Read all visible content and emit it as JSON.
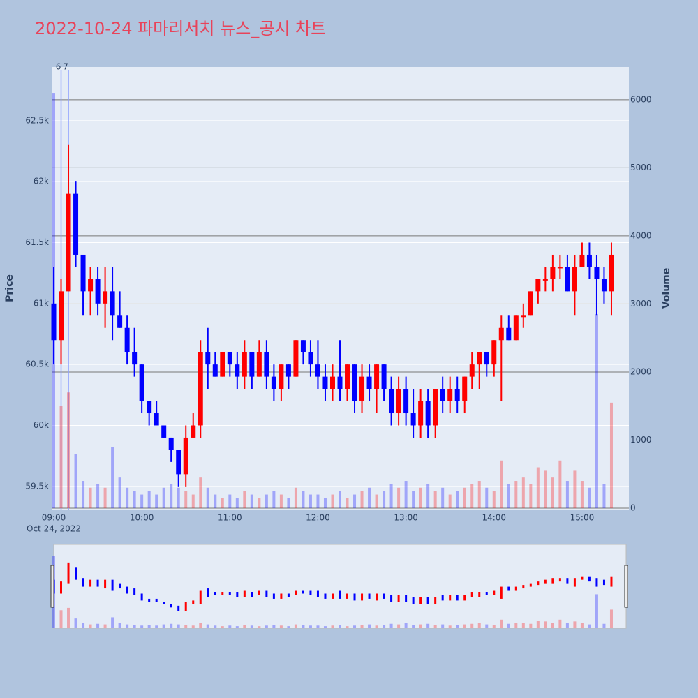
{
  "chart_data": {
    "type": "candlestick",
    "title": "2022-10-24 파마리서치 뉴스_공시 차트",
    "ylabel": "Price",
    "y2label": "Volume",
    "date_label": "Oct 24, 2022",
    "up_color": "#ff0000",
    "down_color": "#0000ff",
    "grid": true,
    "x": [
      "09:00",
      "09:05",
      "09:10",
      "09:15",
      "09:20",
      "09:25",
      "09:30",
      "09:35",
      "09:40",
      "09:45",
      "09:50",
      "09:55",
      "10:00",
      "10:05",
      "10:10",
      "10:15",
      "10:20",
      "10:25",
      "10:30",
      "10:35",
      "10:40",
      "10:45",
      "10:50",
      "10:55",
      "11:00",
      "11:05",
      "11:10",
      "11:15",
      "11:20",
      "11:25",
      "11:30",
      "11:35",
      "11:40",
      "11:45",
      "11:50",
      "11:55",
      "12:00",
      "12:05",
      "12:10",
      "12:15",
      "12:20",
      "12:25",
      "12:30",
      "12:35",
      "12:40",
      "12:45",
      "12:50",
      "12:55",
      "13:00",
      "13:05",
      "13:10",
      "13:15",
      "13:20",
      "13:25",
      "13:30",
      "13:35",
      "13:40",
      "13:45",
      "13:50",
      "13:55",
      "14:00",
      "14:05",
      "14:10",
      "14:15",
      "14:20",
      "14:25",
      "14:30",
      "14:35",
      "14:40",
      "14:45",
      "14:50",
      "14:55",
      "15:00",
      "15:05",
      "15:10",
      "15:15",
      "15:20"
    ],
    "open": [
      61000,
      60700,
      61100,
      61900,
      61400,
      61100,
      61200,
      61000,
      61100,
      60900,
      60800,
      60600,
      60500,
      60200,
      60100,
      60000,
      59900,
      59800,
      59600,
      59900,
      60000,
      60600,
      60500,
      60400,
      60600,
      60500,
      60400,
      60600,
      60400,
      60600,
      60400,
      60300,
      60500,
      60400,
      60700,
      60600,
      60500,
      60400,
      60300,
      60400,
      60300,
      60500,
      60200,
      60400,
      60300,
      60500,
      60300,
      60100,
      60300,
      60100,
      60000,
      60200,
      60000,
      60300,
      60200,
      60300,
      60200,
      60400,
      60500,
      60600,
      60500,
      60700,
      60800,
      60700,
      60900,
      60900,
      61100,
      61200,
      61200,
      61300,
      61300,
      61100,
      61300,
      61400,
      61300,
      61200,
      61100
    ],
    "high": [
      61300,
      61200,
      62300,
      62000,
      61400,
      61300,
      61300,
      61300,
      61300,
      61100,
      60900,
      60800,
      60500,
      60200,
      60200,
      60000,
      59900,
      59800,
      60000,
      60100,
      60700,
      60800,
      60600,
      60600,
      60600,
      60600,
      60700,
      60600,
      60700,
      60700,
      60500,
      60500,
      60500,
      60700,
      60700,
      60700,
      60700,
      60500,
      60500,
      60700,
      60500,
      60500,
      60500,
      60500,
      60500,
      60500,
      60400,
      60400,
      60400,
      60300,
      60300,
      60300,
      60300,
      60400,
      60400,
      60400,
      60400,
      60600,
      60600,
      60600,
      60700,
      60900,
      60900,
      60900,
      61000,
      61100,
      61200,
      61300,
      61400,
      61400,
      61400,
      61400,
      61500,
      61500,
      61400,
      61300,
      61500
    ],
    "low": [
      60500,
      60500,
      61100,
      61300,
      60900,
      60900,
      60900,
      60800,
      60700,
      60800,
      60500,
      60400,
      60100,
      60000,
      60000,
      59900,
      59700,
      59500,
      59500,
      59900,
      59900,
      60300,
      60400,
      60400,
      60400,
      60300,
      60300,
      60300,
      60400,
      60300,
      60200,
      60200,
      60300,
      60400,
      60500,
      60400,
      60300,
      60200,
      60200,
      60200,
      60200,
      60100,
      60100,
      60200,
      60100,
      60200,
      60000,
      60000,
      60000,
      59900,
      59900,
      59900,
      59900,
      60100,
      60100,
      60100,
      60100,
      60300,
      60300,
      60400,
      60400,
      60200,
      60700,
      60700,
      60800,
      60900,
      61000,
      61100,
      61100,
      61200,
      61100,
      60900,
      61300,
      61200,
      60900,
      61000,
      60900
    ],
    "close": [
      60700,
      61100,
      61900,
      61400,
      61100,
      61200,
      61000,
      61100,
      60900,
      60800,
      60600,
      60500,
      60200,
      60100,
      60000,
      59900,
      59800,
      59600,
      59900,
      60000,
      60600,
      60500,
      60400,
      60600,
      60500,
      60400,
      60600,
      60400,
      60600,
      60400,
      60300,
      60500,
      60400,
      60700,
      60600,
      60500,
      60400,
      60300,
      60400,
      60300,
      60500,
      60200,
      60400,
      60300,
      60500,
      60300,
      60100,
      60300,
      60100,
      60000,
      60200,
      60000,
      60300,
      60200,
      60300,
      60200,
      60400,
      60500,
      60600,
      60500,
      60700,
      60800,
      60700,
      60900,
      60900,
      61100,
      61200,
      61200,
      61300,
      61300,
      61100,
      61300,
      61400,
      61300,
      61200,
      61100,
      61400
    ],
    "volume": [
      6100,
      1500,
      1700,
      800,
      400,
      300,
      350,
      300,
      900,
      450,
      300,
      250,
      200,
      250,
      200,
      300,
      350,
      300,
      250,
      200,
      450,
      300,
      200,
      150,
      200,
      150,
      250,
      200,
      150,
      200,
      250,
      200,
      150,
      300,
      250,
      200,
      200,
      150,
      200,
      250,
      150,
      200,
      250,
      300,
      200,
      250,
      350,
      300,
      400,
      250,
      300,
      350,
      250,
      300,
      200,
      250,
      300,
      350,
      400,
      300,
      250,
      700,
      350,
      400,
      450,
      350,
      600,
      550,
      450,
      700,
      400,
      550,
      400,
      300,
      2850,
      350,
      1550
    ],
    "xlim": [
      "09:00",
      "15:30"
    ],
    "xticks": [
      "09:00",
      "10:00",
      "11:00",
      "12:00",
      "13:00",
      "14:00",
      "15:00"
    ],
    "ylim": [
      59310,
      62940
    ],
    "yticks": [
      {
        "value": 59500,
        "label": "59.5k"
      },
      {
        "value": 60000,
        "label": "60k"
      },
      {
        "value": 60500,
        "label": "60.5k"
      },
      {
        "value": 61000,
        "label": "61k"
      },
      {
        "value": 61500,
        "label": "61.5k"
      },
      {
        "value": 62000,
        "label": "62k"
      },
      {
        "value": 62500,
        "label": "62.5k"
      }
    ],
    "y2lim": [
      -20,
      6480
    ],
    "y2ticks": [
      0,
      1000,
      2000,
      3000,
      4000,
      5000,
      6000
    ],
    "annotations": [
      {
        "x": "09:05",
        "text": "6"
      },
      {
        "x": "09:10",
        "text": "7"
      }
    ]
  }
}
